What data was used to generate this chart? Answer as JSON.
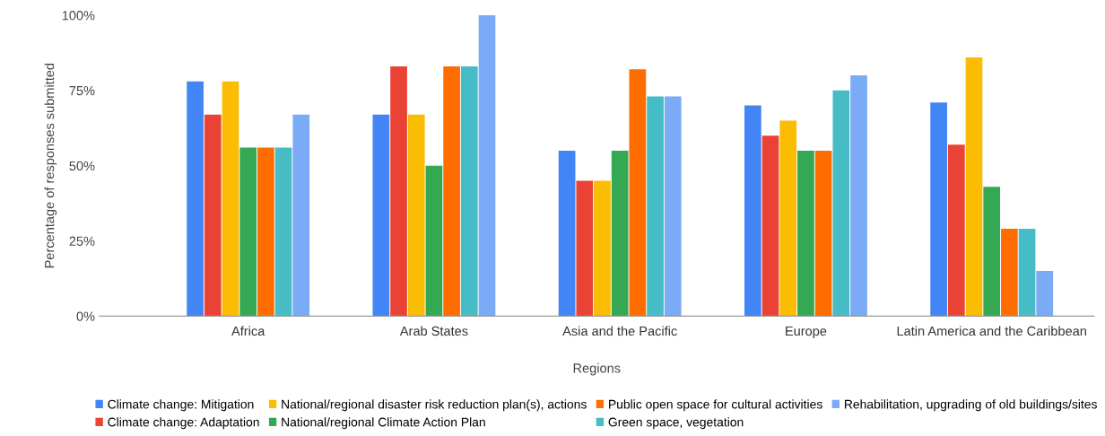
{
  "chart_data": {
    "type": "bar",
    "xlabel": "Regions",
    "ylabel": "Percentage of responses submitted",
    "categories": [
      "Africa",
      "Arab States",
      "Asia and the Pacific",
      "Europe",
      "Latin America and the Caribbean"
    ],
    "series": [
      {
        "name": "Climate change: Mitigation",
        "color": "#4285f4",
        "values": [
          78,
          67,
          55,
          70,
          71
        ]
      },
      {
        "name": "Climate change: Adaptation",
        "color": "#ea4335",
        "values": [
          67,
          83,
          45,
          60,
          57
        ]
      },
      {
        "name": "National/regional disaster risk reduction plan(s), actions",
        "color": "#fbbc04",
        "values": [
          78,
          67,
          45,
          65,
          86
        ]
      },
      {
        "name": "National/regional Climate Action Plan",
        "color": "#34a853",
        "values": [
          56,
          50,
          55,
          55,
          43
        ]
      },
      {
        "name": "Public open space for cultural activities",
        "color": "#ff6d01",
        "values": [
          56,
          83,
          82,
          55,
          29
        ]
      },
      {
        "name": "Green space, vegetation",
        "color": "#46bdc6",
        "values": [
          56,
          83,
          73,
          75,
          29
        ]
      },
      {
        "name": "Rehabilitation, upgrading of old buildings/sites",
        "color": "#7baaf7",
        "values": [
          67,
          100,
          73,
          80,
          15
        ]
      }
    ],
    "ylim": [
      0,
      100
    ],
    "yticks": [
      {
        "value": 0,
        "label": "0%"
      },
      {
        "value": 25,
        "label": "25%"
      },
      {
        "value": 50,
        "label": "50%"
      },
      {
        "value": 75,
        "label": "75%"
      },
      {
        "value": 100,
        "label": "100%"
      }
    ],
    "grid": false,
    "legend": "bottom"
  }
}
